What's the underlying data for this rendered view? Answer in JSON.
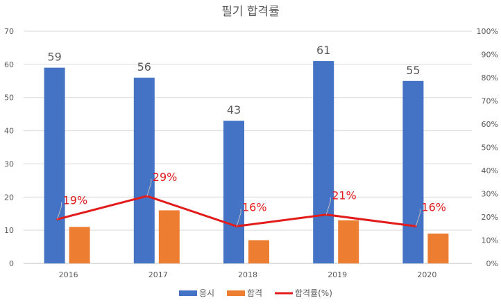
{
  "chart_data": {
    "type": "bar",
    "title": "필기 합격률",
    "categories": [
      "2016",
      "2017",
      "2018",
      "2019",
      "2020"
    ],
    "ylim": [
      0,
      70
    ],
    "yticks": [
      0,
      10,
      20,
      30,
      40,
      50,
      60,
      70
    ],
    "y2lim": [
      0,
      100
    ],
    "y2ticks": [
      "0%",
      "10%",
      "20%",
      "30%",
      "40%",
      "50%",
      "60%",
      "70%",
      "80%",
      "90%",
      "100%"
    ],
    "grid": true,
    "legend_position": "bottom",
    "series": [
      {
        "name": "응시",
        "kind": "bar",
        "axis": "left",
        "color": "#4472c4",
        "values": [
          59,
          56,
          43,
          61,
          55
        ],
        "data_labels": [
          "59",
          "56",
          "43",
          "61",
          "55"
        ]
      },
      {
        "name": "합격",
        "kind": "bar",
        "axis": "left",
        "color": "#ed7d31",
        "values": [
          11,
          16,
          7,
          13,
          9
        ]
      },
      {
        "name": "합격률(%)",
        "kind": "line",
        "axis": "right",
        "color": "#e21b1b",
        "values": [
          19,
          29,
          16,
          21,
          16
        ],
        "data_labels": [
          "19%",
          "29%",
          "16%",
          "21%",
          "16%"
        ]
      }
    ]
  }
}
